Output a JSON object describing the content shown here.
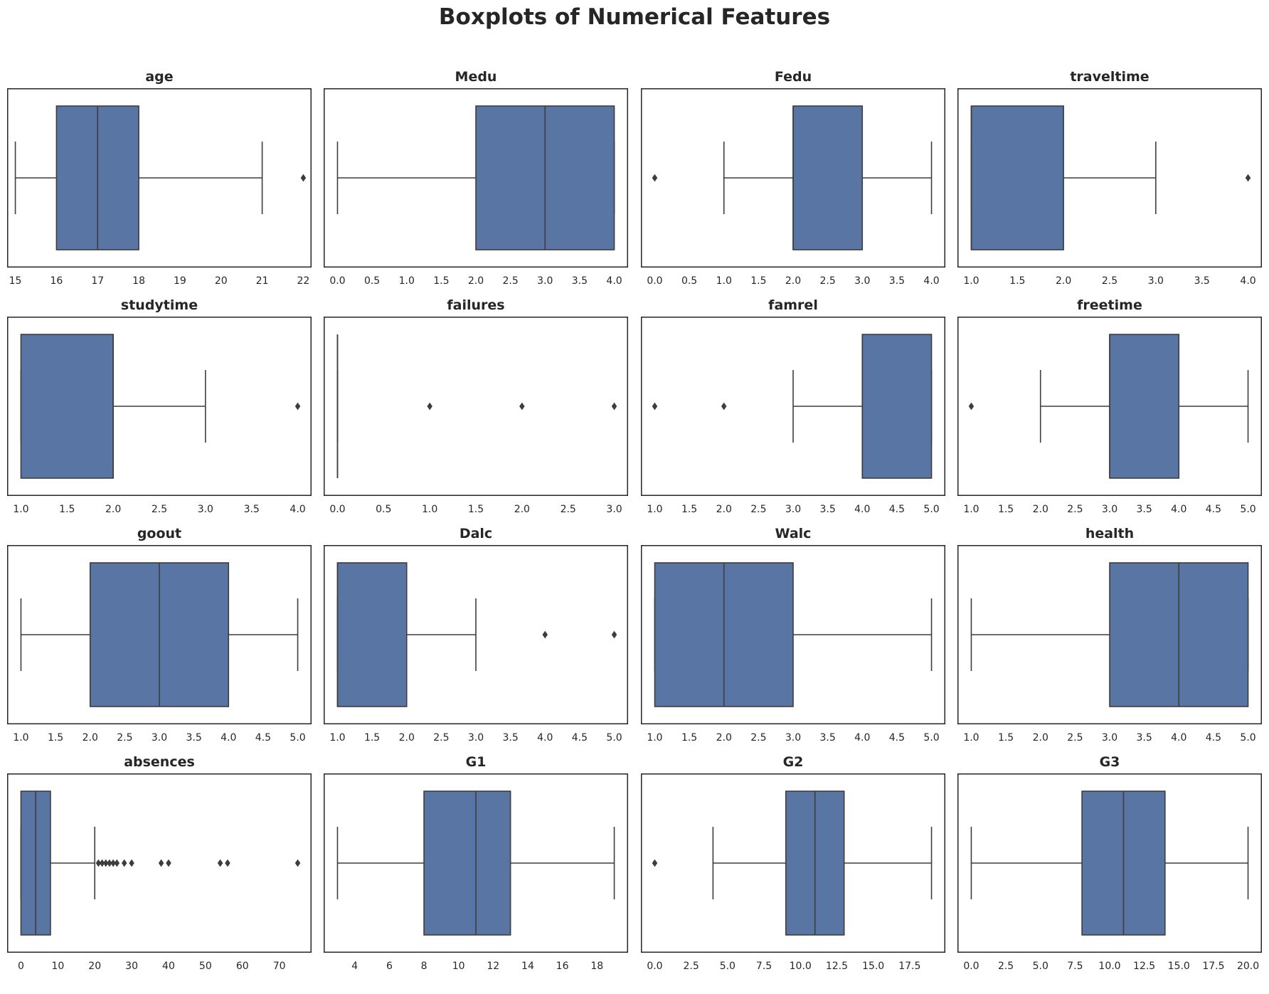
{
  "title": "Boxplots of Numerical Features",
  "colors": {
    "box_fill": "#5975a4",
    "line": "#3d3d3d",
    "frame": "#262626",
    "text": "#262626"
  },
  "chart_data": [
    {
      "type": "box",
      "title": "age",
      "xlim": [
        14.8,
        22.2
      ],
      "ticks": [
        15,
        16,
        17,
        18,
        19,
        20,
        21,
        22
      ],
      "tick_labels": [
        "15",
        "16",
        "17",
        "18",
        "19",
        "20",
        "21",
        "22"
      ],
      "whislo": 15,
      "q1": 16,
      "med": 17,
      "q3": 18,
      "whishi": 21,
      "fliers": [
        22
      ]
    },
    {
      "type": "box",
      "title": "Medu",
      "xlim": [
        -0.2,
        4.2
      ],
      "ticks": [
        0,
        0.5,
        1,
        1.5,
        2,
        2.5,
        3,
        3.5,
        4
      ],
      "tick_labels": [
        "0.0",
        "0.5",
        "1.0",
        "1.5",
        "2.0",
        "2.5",
        "3.0",
        "3.5",
        "4.0"
      ],
      "whislo": 0,
      "q1": 2,
      "med": 3,
      "q3": 4,
      "whishi": 4,
      "fliers": []
    },
    {
      "type": "box",
      "title": "Fedu",
      "xlim": [
        -0.2,
        4.2
      ],
      "ticks": [
        0,
        0.5,
        1,
        1.5,
        2,
        2.5,
        3,
        3.5,
        4
      ],
      "tick_labels": [
        "0.0",
        "0.5",
        "1.0",
        "1.5",
        "2.0",
        "2.5",
        "3.0",
        "3.5",
        "4.0"
      ],
      "whislo": 1,
      "q1": 2,
      "med": 2,
      "q3": 3,
      "whishi": 4,
      "fliers": [
        0
      ]
    },
    {
      "type": "box",
      "title": "traveltime",
      "xlim": [
        0.85,
        4.15
      ],
      "ticks": [
        1,
        1.5,
        2,
        2.5,
        3,
        3.5,
        4
      ],
      "tick_labels": [
        "1.0",
        "1.5",
        "2.0",
        "2.5",
        "3.0",
        "3.5",
        "4.0"
      ],
      "whislo": 1,
      "q1": 1,
      "med": 1,
      "q3": 2,
      "whishi": 3,
      "fliers": [
        4
      ]
    },
    {
      "type": "box",
      "title": "studytime",
      "xlim": [
        0.85,
        4.15
      ],
      "ticks": [
        1,
        1.5,
        2,
        2.5,
        3,
        3.5,
        4
      ],
      "tick_labels": [
        "1.0",
        "1.5",
        "2.0",
        "2.5",
        "3.0",
        "3.5",
        "4.0"
      ],
      "whislo": 1,
      "q1": 1,
      "med": 2,
      "q3": 2,
      "whishi": 3,
      "fliers": [
        4
      ]
    },
    {
      "type": "box",
      "title": "failures",
      "xlim": [
        -0.15,
        3.15
      ],
      "ticks": [
        0,
        0.5,
        1,
        1.5,
        2,
        2.5,
        3
      ],
      "tick_labels": [
        "0.0",
        "0.5",
        "1.0",
        "1.5",
        "2.0",
        "2.5",
        "3.0"
      ],
      "whislo": 0,
      "q1": 0,
      "med": 0,
      "q3": 0,
      "whishi": 0,
      "fliers": [
        1,
        2,
        3
      ]
    },
    {
      "type": "box",
      "title": "famrel",
      "xlim": [
        0.8,
        5.2
      ],
      "ticks": [
        1,
        1.5,
        2,
        2.5,
        3,
        3.5,
        4,
        4.5,
        5
      ],
      "tick_labels": [
        "1.0",
        "1.5",
        "2.0",
        "2.5",
        "3.0",
        "3.5",
        "4.0",
        "4.5",
        "5.0"
      ],
      "whislo": 3,
      "q1": 4,
      "med": 4,
      "q3": 5,
      "whishi": 5,
      "fliers": [
        1,
        2
      ]
    },
    {
      "type": "box",
      "title": "freetime",
      "xlim": [
        0.8,
        5.2
      ],
      "ticks": [
        1,
        1.5,
        2,
        2.5,
        3,
        3.5,
        4,
        4.5,
        5
      ],
      "tick_labels": [
        "1.0",
        "1.5",
        "2.0",
        "2.5",
        "3.0",
        "3.5",
        "4.0",
        "4.5",
        "5.0"
      ],
      "whislo": 2,
      "q1": 3,
      "med": 3,
      "q3": 4,
      "whishi": 5,
      "fliers": [
        1
      ]
    },
    {
      "type": "box",
      "title": "goout",
      "xlim": [
        0.8,
        5.2
      ],
      "ticks": [
        1,
        1.5,
        2,
        2.5,
        3,
        3.5,
        4,
        4.5,
        5
      ],
      "tick_labels": [
        "1.0",
        "1.5",
        "2.0",
        "2.5",
        "3.0",
        "3.5",
        "4.0",
        "4.5",
        "5.0"
      ],
      "whislo": 1,
      "q1": 2,
      "med": 3,
      "q3": 4,
      "whishi": 5,
      "fliers": []
    },
    {
      "type": "box",
      "title": "Dalc",
      "xlim": [
        0.8,
        5.2
      ],
      "ticks": [
        1,
        1.5,
        2,
        2.5,
        3,
        3.5,
        4,
        4.5,
        5
      ],
      "tick_labels": [
        "1.0",
        "1.5",
        "2.0",
        "2.5",
        "3.0",
        "3.5",
        "4.0",
        "4.5",
        "5.0"
      ],
      "whislo": 1,
      "q1": 1,
      "med": 1,
      "q3": 2,
      "whishi": 3,
      "fliers": [
        4,
        5
      ]
    },
    {
      "type": "box",
      "title": "Walc",
      "xlim": [
        0.8,
        5.2
      ],
      "ticks": [
        1,
        1.5,
        2,
        2.5,
        3,
        3.5,
        4,
        4.5,
        5
      ],
      "tick_labels": [
        "1.0",
        "1.5",
        "2.0",
        "2.5",
        "3.0",
        "3.5",
        "4.0",
        "4.5",
        "5.0"
      ],
      "whislo": 1,
      "q1": 1,
      "med": 2,
      "q3": 3,
      "whishi": 5,
      "fliers": []
    },
    {
      "type": "box",
      "title": "health",
      "xlim": [
        0.8,
        5.2
      ],
      "ticks": [
        1,
        1.5,
        2,
        2.5,
        3,
        3.5,
        4,
        4.5,
        5
      ],
      "tick_labels": [
        "1.0",
        "1.5",
        "2.0",
        "2.5",
        "3.0",
        "3.5",
        "4.0",
        "4.5",
        "5.0"
      ],
      "whislo": 1,
      "q1": 3,
      "med": 4,
      "q3": 5,
      "whishi": 5,
      "fliers": []
    },
    {
      "type": "box",
      "title": "absences",
      "xlim": [
        -3.75,
        78.75
      ],
      "ticks": [
        0,
        10,
        20,
        30,
        40,
        50,
        60,
        70
      ],
      "tick_labels": [
        "0",
        "10",
        "20",
        "30",
        "40",
        "50",
        "60",
        "70"
      ],
      "whislo": 0,
      "q1": 0,
      "med": 4,
      "q3": 8,
      "whishi": 20,
      "fliers": [
        21,
        22,
        23,
        24,
        25,
        26,
        28,
        30,
        38,
        40,
        54,
        56,
        75
      ]
    },
    {
      "type": "box",
      "title": "G1",
      "xlim": [
        2.2,
        19.8
      ],
      "ticks": [
        4,
        6,
        8,
        10,
        12,
        14,
        16,
        18
      ],
      "tick_labels": [
        "4",
        "6",
        "8",
        "10",
        "12",
        "14",
        "16",
        "18"
      ],
      "whislo": 3,
      "q1": 8,
      "med": 11,
      "q3": 13,
      "whishi": 19,
      "fliers": []
    },
    {
      "type": "box",
      "title": "G2",
      "xlim": [
        -0.95,
        19.95
      ],
      "ticks": [
        0,
        2.5,
        5,
        7.5,
        10,
        12.5,
        15,
        17.5
      ],
      "tick_labels": [
        "0.0",
        "2.5",
        "5.0",
        "7.5",
        "10.0",
        "12.5",
        "15.0",
        "17.5"
      ],
      "whislo": 4,
      "q1": 9,
      "med": 11,
      "q3": 13,
      "whishi": 19,
      "fliers": [
        0
      ]
    },
    {
      "type": "box",
      "title": "G3",
      "xlim": [
        -1,
        21
      ],
      "ticks": [
        0,
        2.5,
        5,
        7.5,
        10,
        12.5,
        15,
        17.5,
        20
      ],
      "tick_labels": [
        "0.0",
        "2.5",
        "5.0",
        "7.5",
        "10.0",
        "12.5",
        "15.0",
        "17.5",
        "20.0"
      ],
      "whislo": 0,
      "q1": 8,
      "med": 11,
      "q3": 14,
      "whishi": 20,
      "fliers": []
    }
  ]
}
